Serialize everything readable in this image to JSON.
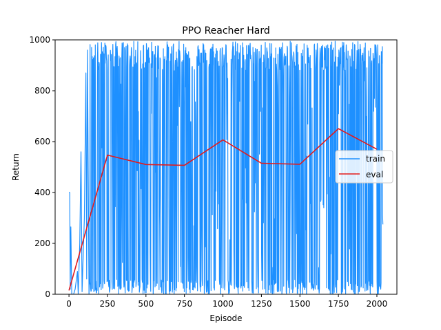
{
  "chart_data": {
    "type": "line",
    "title": "PPO Reacher Hard",
    "xlabel": "Episode",
    "ylabel": "Return",
    "xlim": [
      -90,
      2130
    ],
    "ylim": [
      0,
      1000
    ],
    "xticks": [
      0,
      250,
      500,
      750,
      1000,
      1250,
      1500,
      1750,
      2000
    ],
    "yticks": [
      0,
      200,
      400,
      600,
      800,
      1000
    ],
    "grid": false,
    "legend_position": "center-right",
    "train_episode_range": [
      0,
      2040
    ],
    "train_pattern_description_points": [
      [
        0,
        400
      ],
      [
        5,
        400
      ],
      [
        8,
        20
      ],
      [
        12,
        265
      ],
      [
        18,
        0
      ],
      [
        30,
        0
      ],
      [
        40,
        20
      ],
      [
        55,
        90
      ],
      [
        60,
        0
      ],
      [
        70,
        200
      ],
      [
        78,
        560
      ],
      [
        85,
        10
      ],
      [
        100,
        300
      ],
      [
        110,
        870
      ],
      [
        115,
        60
      ],
      [
        120,
        960
      ],
      [
        130,
        0
      ]
    ],
    "series": [
      {
        "name": "train",
        "color": "#1e90ff"
      },
      {
        "name": "eval",
        "color": "#e31a1c",
        "x": [
          0,
          250,
          500,
          750,
          1000,
          1250,
          1500,
          1750,
          2000
        ],
        "y": [
          15,
          547,
          510,
          507,
          607,
          515,
          511,
          651,
          570
        ]
      }
    ]
  }
}
